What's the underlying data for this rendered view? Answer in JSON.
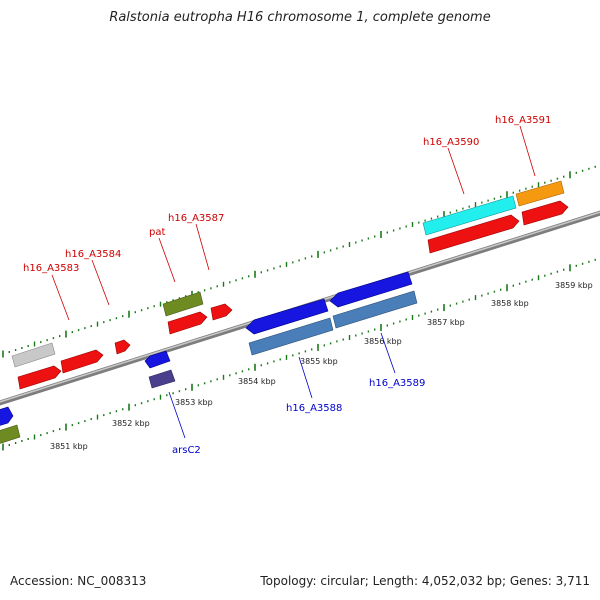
{
  "title": "Ralstonia eutropha H16 chromosome 1, complete genome",
  "footer": {
    "accession": "Accession: NC_008313",
    "summary": "Topology: circular; Length: 4,052,032 bp; Genes: 3,711"
  },
  "colors": {
    "forward_label": "#cc0000",
    "reverse_label": "#0000cc",
    "tick": "#1a7a1a",
    "backbone": "#8c8c8c"
  },
  "ticks": [
    "3851 kbp",
    "3852 kbp",
    "3853 kbp",
    "3854 kbp",
    "3855 kbp",
    "3856 kbp",
    "3857 kbp",
    "3858 kbp",
    "3859 kbp"
  ],
  "labels": {
    "h16_A3583": "h16_A3583",
    "h16_A3584": "h16_A3584",
    "pat": "pat",
    "h16_A3587": "h16_A3587",
    "h16_A3590": "h16_A3590",
    "h16_A3591": "h16_A3591",
    "arsC2": "arsC2",
    "h16_A3588": "h16_A3588",
    "h16_A3589": "h16_A3589"
  }
}
